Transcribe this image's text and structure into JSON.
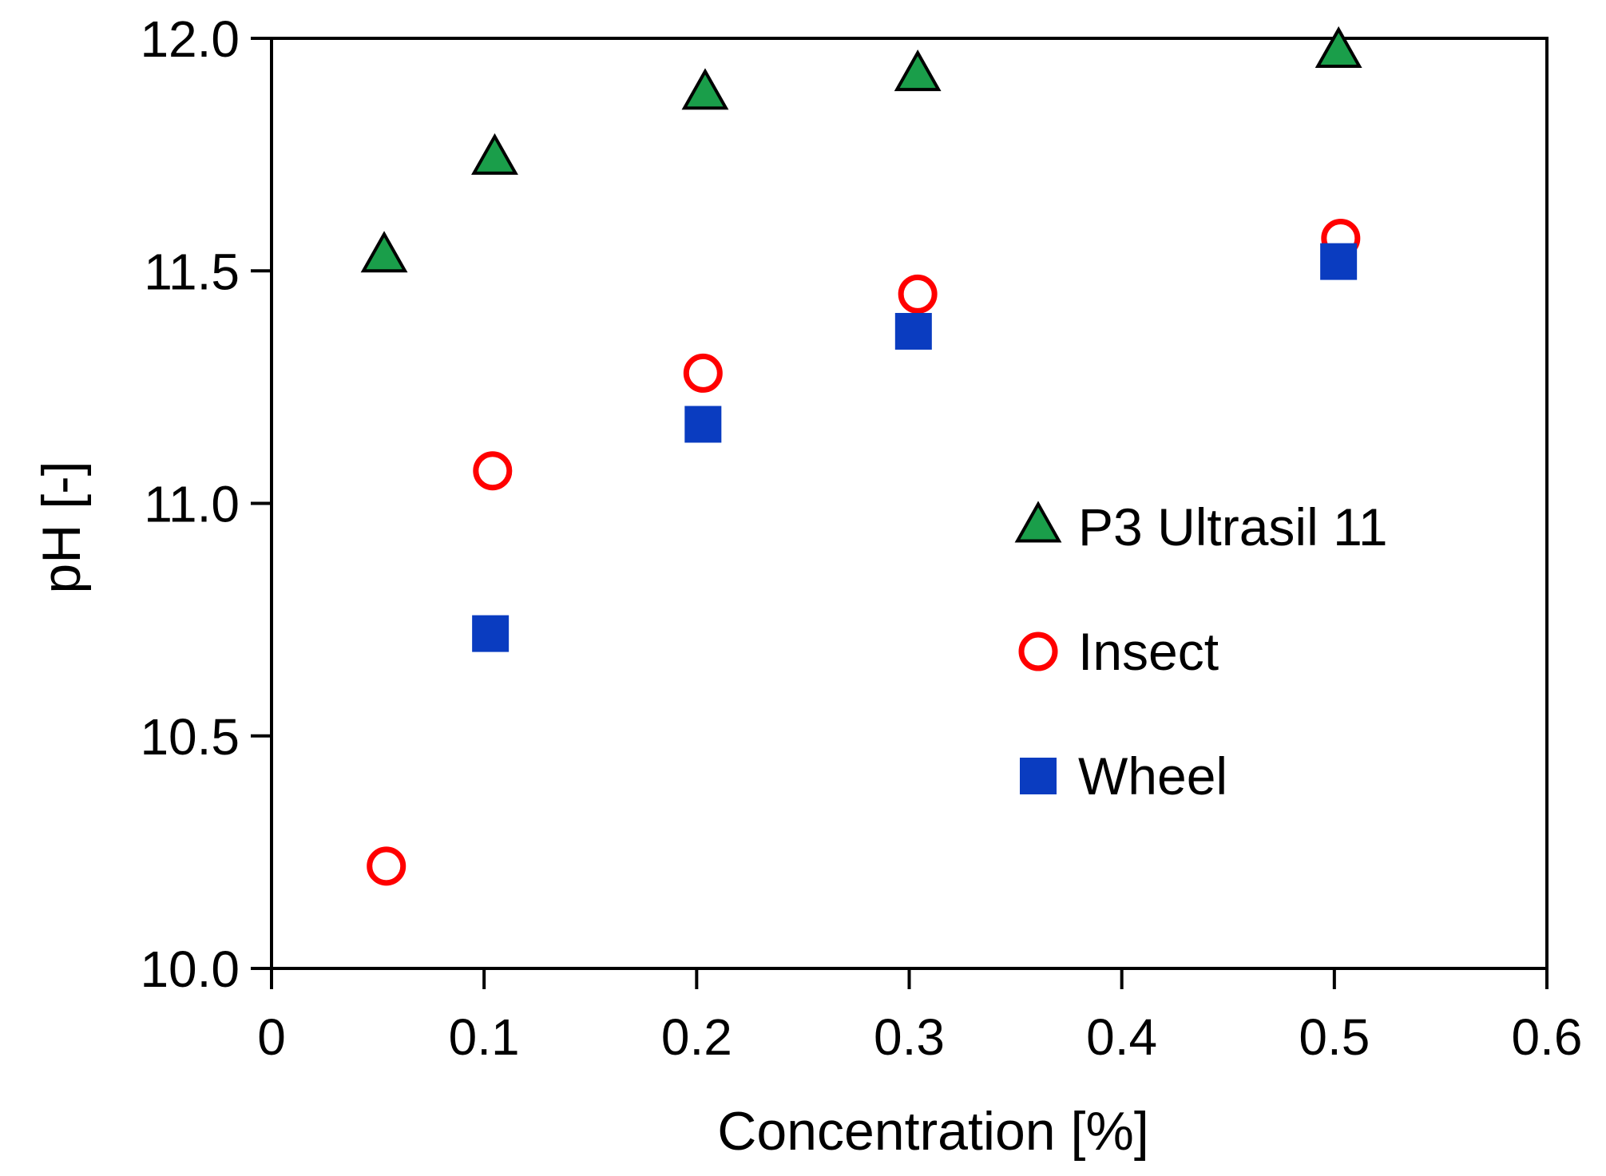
{
  "chart_data": {
    "type": "scatter",
    "title": "",
    "xlabel": "Concentration [%]",
    "ylabel": "pH [-]",
    "xlim": [
      0,
      0.6
    ],
    "ylim": [
      10.0,
      12.0
    ],
    "grid": false,
    "legend_position": "right-middle",
    "x_ticks": [
      {
        "value": 0,
        "label": "0"
      },
      {
        "value": 0.1,
        "label": "0.1"
      },
      {
        "value": 0.2,
        "label": "0.2"
      },
      {
        "value": 0.3,
        "label": "0.3"
      },
      {
        "value": 0.4,
        "label": "0.4"
      },
      {
        "value": 0.5,
        "label": "0.5"
      },
      {
        "value": 0.6,
        "label": "0.6"
      }
    ],
    "y_ticks": [
      {
        "value": 10.0,
        "label": "10.0"
      },
      {
        "value": 10.5,
        "label": "10.5"
      },
      {
        "value": 11.0,
        "label": "11.0"
      },
      {
        "value": 11.5,
        "label": "11.5"
      },
      {
        "value": 12.0,
        "label": "12.0"
      }
    ],
    "series": [
      {
        "name": "P3 Ultrasil 11",
        "marker": "triangle",
        "fill": "#1a9e4a",
        "stroke": "#000000",
        "points": [
          {
            "x": 0.053,
            "y": 11.53
          },
          {
            "x": 0.105,
            "y": 11.74
          },
          {
            "x": 0.204,
            "y": 11.88
          },
          {
            "x": 0.304,
            "y": 11.92
          },
          {
            "x": 0.502,
            "y": 11.97
          }
        ]
      },
      {
        "name": "Insect",
        "marker": "circle",
        "fill": "none",
        "stroke": "#ff0000",
        "points": [
          {
            "x": 0.054,
            "y": 10.22
          },
          {
            "x": 0.104,
            "y": 11.07
          },
          {
            "x": 0.203,
            "y": 11.28
          },
          {
            "x": 0.304,
            "y": 11.45
          },
          {
            "x": 0.503,
            "y": 11.57
          }
        ]
      },
      {
        "name": "Wheel",
        "marker": "square",
        "fill": "#0a3cc0",
        "stroke": "none",
        "points": [
          {
            "x": 0.103,
            "y": 10.72
          },
          {
            "x": 0.203,
            "y": 11.17
          },
          {
            "x": 0.302,
            "y": 11.37
          },
          {
            "x": 0.502,
            "y": 11.52
          }
        ]
      }
    ]
  }
}
